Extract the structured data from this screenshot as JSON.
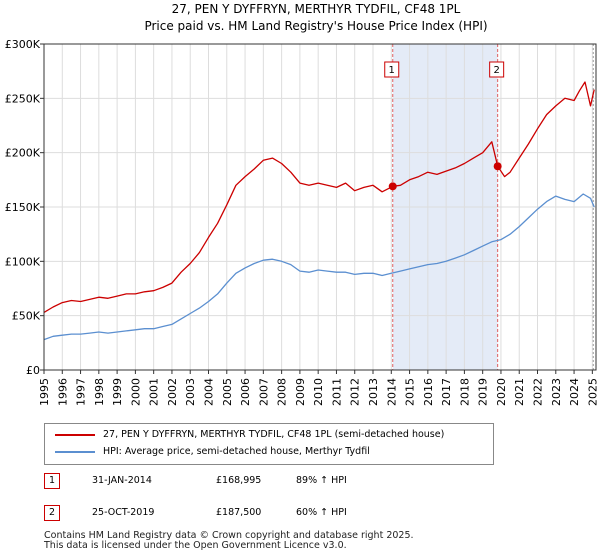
{
  "chart_data": {
    "type": "line",
    "title": "27, PEN Y DYFFRYN, MERTHYR TYDFIL, CF48 1PL",
    "subtitle": "Price paid vs. HM Land Registry's House Price Index (HPI)",
    "xlim": [
      1995,
      2025.2
    ],
    "ylim": [
      0,
      300000
    ],
    "x_ticks": [
      1995,
      1996,
      1997,
      1998,
      1999,
      2000,
      2001,
      2002,
      2003,
      2004,
      2005,
      2006,
      2007,
      2008,
      2009,
      2010,
      2011,
      2012,
      2013,
      2014,
      2015,
      2016,
      2017,
      2018,
      2019,
      2020,
      2021,
      2022,
      2023,
      2024,
      2025
    ],
    "y_ticks": [
      0,
      50000,
      100000,
      150000,
      200000,
      250000,
      300000
    ],
    "y_tick_labels": [
      "£0",
      "£50K",
      "£100K",
      "£150K",
      "£200K",
      "£250K",
      "£300K"
    ],
    "grid": true,
    "shaded_region": [
      2014.08,
      2019.82
    ],
    "series": [
      {
        "name": "27, PEN Y DYFFRYN, MERTHYR TYDFIL, CF48 1PL (semi-detached house)",
        "color": "#cc0000",
        "x": [
          1995.0,
          1995.5,
          1996.0,
          1996.5,
          1997.0,
          1997.5,
          1998.0,
          1998.5,
          1999.0,
          1999.5,
          2000.0,
          2000.5,
          2001.0,
          2001.5,
          2002.0,
          2002.5,
          2003.0,
          2003.5,
          2004.0,
          2004.5,
          2005.0,
          2005.5,
          2006.0,
          2006.5,
          2007.0,
          2007.5,
          2008.0,
          2008.5,
          2009.0,
          2009.5,
          2010.0,
          2010.5,
          2011.0,
          2011.5,
          2012.0,
          2012.5,
          2013.0,
          2013.5,
          2014.08,
          2014.5,
          2015.0,
          2015.5,
          2016.0,
          2016.5,
          2017.0,
          2017.5,
          2018.0,
          2018.5,
          2019.0,
          2019.5,
          2019.82,
          2020.2,
          2020.5,
          2021.0,
          2021.5,
          2022.0,
          2022.5,
          2023.0,
          2023.5,
          2024.0,
          2024.3,
          2024.6,
          2024.9,
          2025.1
        ],
        "values": [
          53000,
          58000,
          62000,
          64000,
          63000,
          65000,
          67000,
          66000,
          68000,
          70000,
          70000,
          72000,
          73000,
          76000,
          80000,
          90000,
          98000,
          108000,
          122000,
          135000,
          152000,
          170000,
          178000,
          185000,
          193000,
          195000,
          190000,
          182000,
          172000,
          170000,
          172000,
          170000,
          168000,
          172000,
          165000,
          168000,
          170000,
          164000,
          168995,
          170000,
          175000,
          178000,
          182000,
          180000,
          183000,
          186000,
          190000,
          195000,
          200000,
          210000,
          187500,
          178000,
          182000,
          195000,
          208000,
          222000,
          235000,
          243000,
          250000,
          248000,
          257000,
          265000,
          243000,
          258000
        ]
      },
      {
        "name": "HPI: Average price, semi-detached house, Merthyr Tydfil",
        "color": "#5b8fd0",
        "x": [
          1995.0,
          1995.5,
          1996.0,
          1996.5,
          1997.0,
          1997.5,
          1998.0,
          1998.5,
          1999.0,
          1999.5,
          2000.0,
          2000.5,
          2001.0,
          2001.5,
          2002.0,
          2002.5,
          2003.0,
          2003.5,
          2004.0,
          2004.5,
          2005.0,
          2005.5,
          2006.0,
          2006.5,
          2007.0,
          2007.5,
          2008.0,
          2008.5,
          2009.0,
          2009.5,
          2010.0,
          2010.5,
          2011.0,
          2011.5,
          2012.0,
          2012.5,
          2013.0,
          2013.5,
          2014.0,
          2014.5,
          2015.0,
          2015.5,
          2016.0,
          2016.5,
          2017.0,
          2017.5,
          2018.0,
          2018.5,
          2019.0,
          2019.5,
          2020.0,
          2020.5,
          2021.0,
          2021.5,
          2022.0,
          2022.5,
          2023.0,
          2023.5,
          2024.0,
          2024.5,
          2024.9,
          2025.1
        ],
        "values": [
          28000,
          31000,
          32000,
          33000,
          33000,
          34000,
          35000,
          34000,
          35000,
          36000,
          37000,
          38000,
          38000,
          40000,
          42000,
          47000,
          52000,
          57000,
          63000,
          70000,
          80000,
          89000,
          94000,
          98000,
          101000,
          102000,
          100000,
          97000,
          91000,
          90000,
          92000,
          91000,
          90000,
          90000,
          88000,
          89000,
          89000,
          87000,
          89000,
          91000,
          93000,
          95000,
          97000,
          98000,
          100000,
          103000,
          106000,
          110000,
          114000,
          118000,
          120000,
          125000,
          132000,
          140000,
          148000,
          155000,
          160000,
          157000,
          155000,
          162000,
          158000,
          150000
        ]
      }
    ],
    "annotations": [
      {
        "label": "1",
        "x": 2014.08,
        "y": 168995
      },
      {
        "label": "2",
        "x": 2019.82,
        "y": 187500
      }
    ]
  },
  "legend": [
    {
      "label": "27, PEN Y DYFFRYN, MERTHYR TYDFIL, CF48 1PL (semi-detached house)",
      "color": "#cc0000"
    },
    {
      "label": "HPI: Average price, semi-detached house, Merthyr Tydfil",
      "color": "#5b8fd0"
    }
  ],
  "sales": [
    {
      "num": "1",
      "date": "31-JAN-2014",
      "price": "£168,995",
      "hpi": "89% ↑ HPI"
    },
    {
      "num": "2",
      "date": "25-OCT-2019",
      "price": "£187,500",
      "hpi": "60% ↑ HPI"
    }
  ],
  "footer": {
    "line1": "Contains HM Land Registry data © Crown copyright and database right 2025.",
    "line2": "This data is licensed under the Open Government Licence v3.0."
  }
}
